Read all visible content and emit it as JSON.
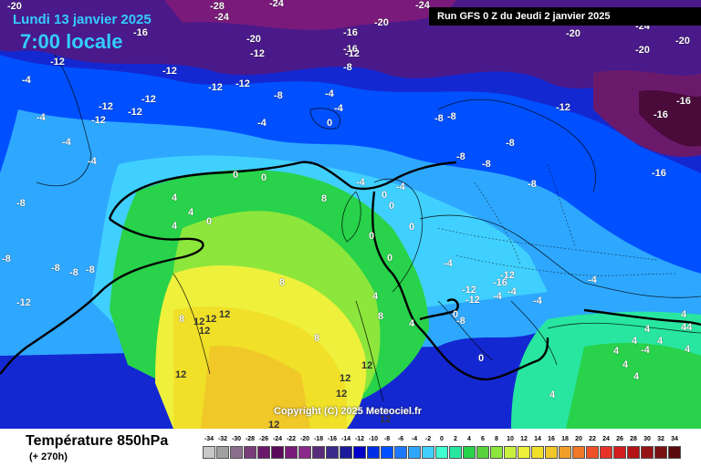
{
  "header": {
    "date": "Lundi 13 janvier 2025",
    "time": "7:00 locale",
    "run": "Run GFS 0 Z du Jeudi 2 janvier 2025"
  },
  "copyright": "Copyright (C) 2025 Meteociel.fr",
  "footer": {
    "parameter": "Température 850hPa",
    "lead": "(+ 270h)"
  },
  "legend": {
    "values": [
      "-34",
      "-32",
      "-30",
      "-28",
      "-26",
      "-24",
      "-22",
      "-20",
      "-18",
      "-16",
      "-14",
      "-12",
      "-10",
      "-8",
      "-6",
      "-4",
      "-2",
      "0",
      "2",
      "4",
      "6",
      "8",
      "10",
      "12",
      "14",
      "16",
      "18",
      "20",
      "22",
      "24",
      "26",
      "28",
      "30",
      "32",
      "34"
    ],
    "colors": [
      "#c8c8c8",
      "#a0a0a0",
      "#8c6e8c",
      "#7a3c7a",
      "#6b1a6b",
      "#5a0a5a",
      "#7a1a7a",
      "#8b2a8b",
      "#5a2a7a",
      "#3a2a8a",
      "#1a1a9a",
      "#0000c8",
      "#0030e6",
      "#0050ff",
      "#1e78ff",
      "#2ea8ff",
      "#40d0ff",
      "#40ffd0",
      "#28e6a0",
      "#28d24a",
      "#58d23c",
      "#8ce63c",
      "#c8f03c",
      "#eef03c",
      "#f0e028",
      "#f0c828",
      "#f0a028",
      "#f07828",
      "#f05028",
      "#e63228",
      "#d21e1e",
      "#b41414",
      "#961414",
      "#7a1010",
      "#5a0a0a"
    ]
  },
  "map": {
    "labels": [
      "-20",
      "-28",
      "-24",
      "-24",
      "-24",
      "-20",
      "-16",
      "-20",
      "-12",
      "-12",
      "-12",
      "-12",
      "-12",
      "-16",
      "-20",
      "-20",
      "-16",
      "-12",
      "-8",
      "-8",
      "-4",
      "-4",
      "-4",
      "-4",
      "-4",
      "-12",
      "-12",
      "-12",
      "-12",
      "-12",
      "-8",
      "-8",
      "-8",
      "-8",
      "-8",
      "-8",
      "-8",
      "-12",
      "-16",
      "-16",
      "-16",
      "-24",
      "-20",
      "-4",
      "-4",
      "-4",
      "-4",
      "-4",
      "0",
      "0",
      "0",
      "0",
      "0",
      "0",
      "0",
      "0",
      "0",
      "0",
      "4",
      "4",
      "4",
      "4",
      "4",
      "4",
      "4",
      "4",
      "4",
      "4",
      "8",
      "8",
      "8",
      "8",
      "8",
      "12",
      "12",
      "12",
      "12",
      "12",
      "12",
      "12",
      "12",
      "12",
      "12",
      "-8",
      "-8",
      "-8",
      "-8",
      "-8",
      "-12",
      "-12",
      "-12",
      "-16",
      "-4",
      "-4",
      "-4",
      "0",
      "-4",
      "-4",
      "4",
      "44",
      "4",
      "4",
      "4",
      "4",
      "4"
    ]
  }
}
